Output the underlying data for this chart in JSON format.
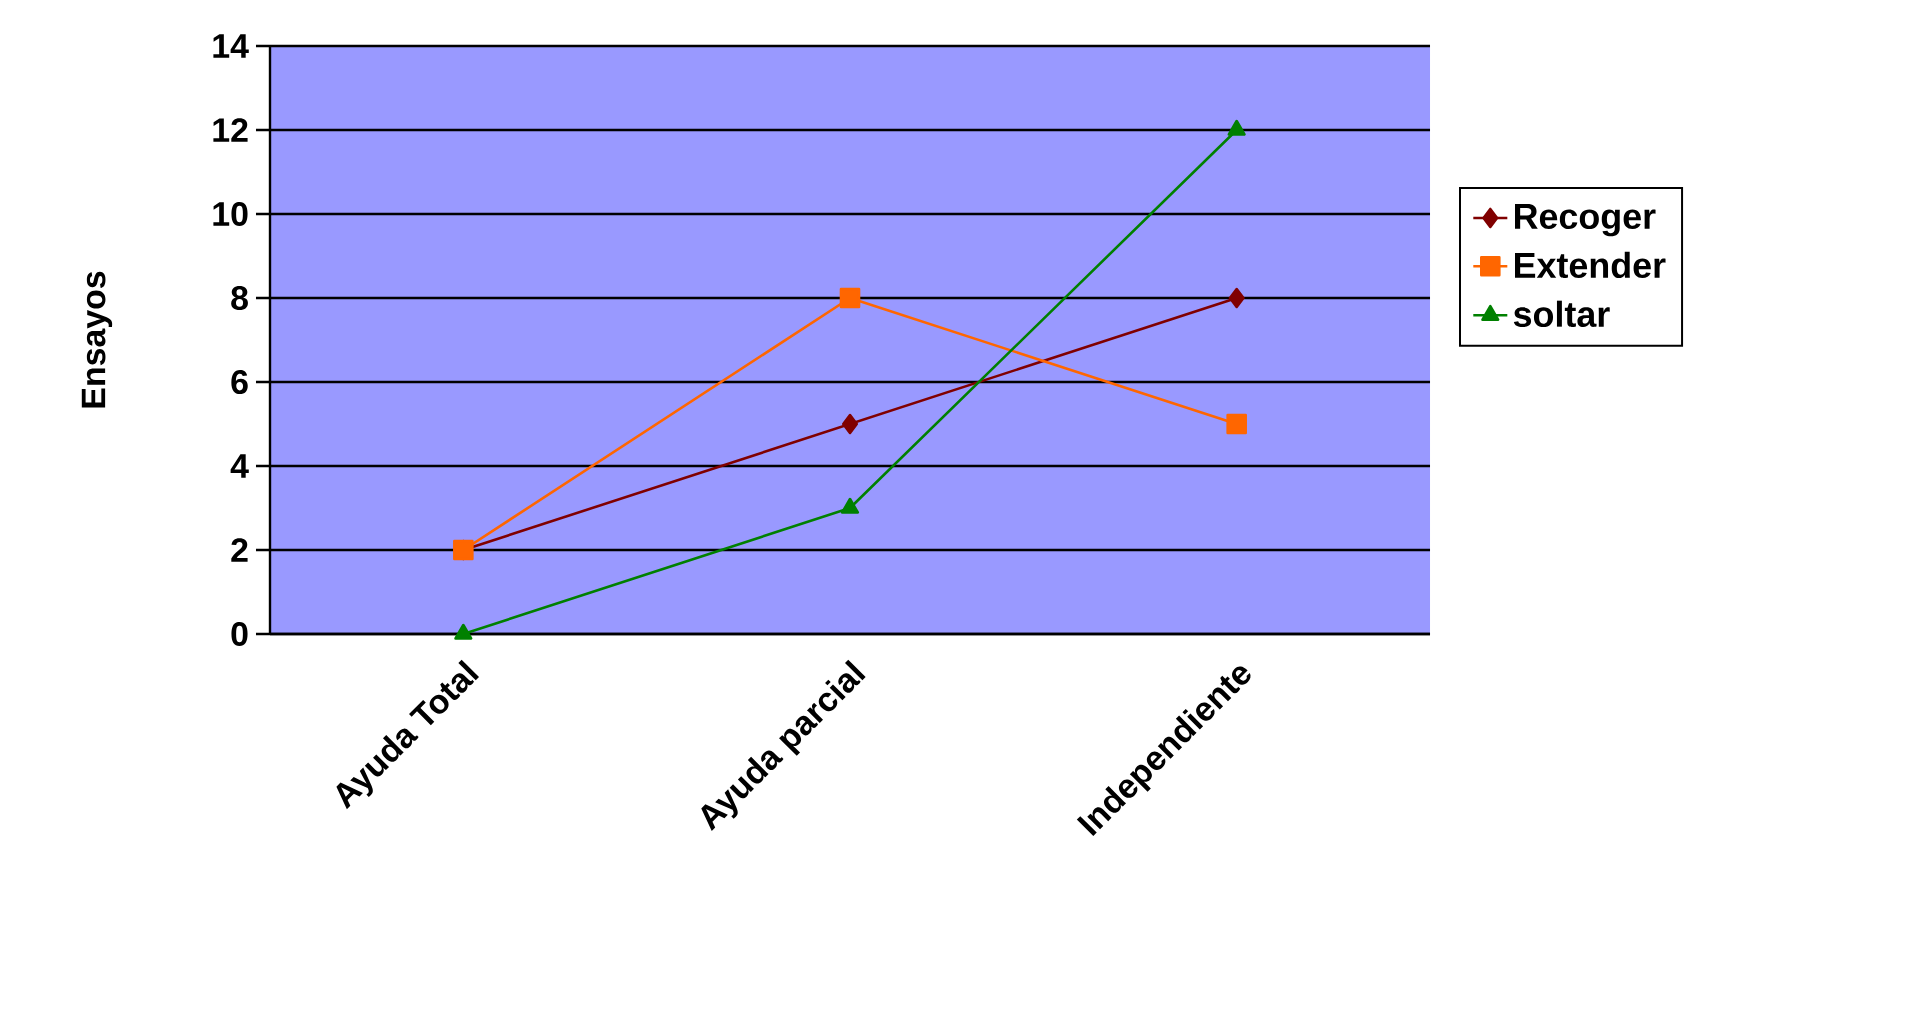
{
  "chart_data": {
    "type": "line",
    "ylabel": "Ensayos",
    "categories": [
      "Ayuda Total",
      "Ayuda parcial",
      "Independiente"
    ],
    "series": [
      {
        "name": "Recoger",
        "color": "#800000",
        "marker": "diamond",
        "values": [
          2,
          5,
          8
        ]
      },
      {
        "name": "Extender",
        "color": "#ff6600",
        "marker": "square",
        "values": [
          2,
          8,
          5
        ]
      },
      {
        "name": "soltar",
        "color": "#008000",
        "marker": "triangle",
        "values": [
          0,
          3,
          12
        ]
      }
    ],
    "ylim": [
      0,
      14
    ],
    "yticks": [
      0,
      2,
      4,
      6,
      8,
      10,
      12,
      14
    ],
    "grid": "y",
    "legend": "right",
    "line_style": "solid"
  }
}
